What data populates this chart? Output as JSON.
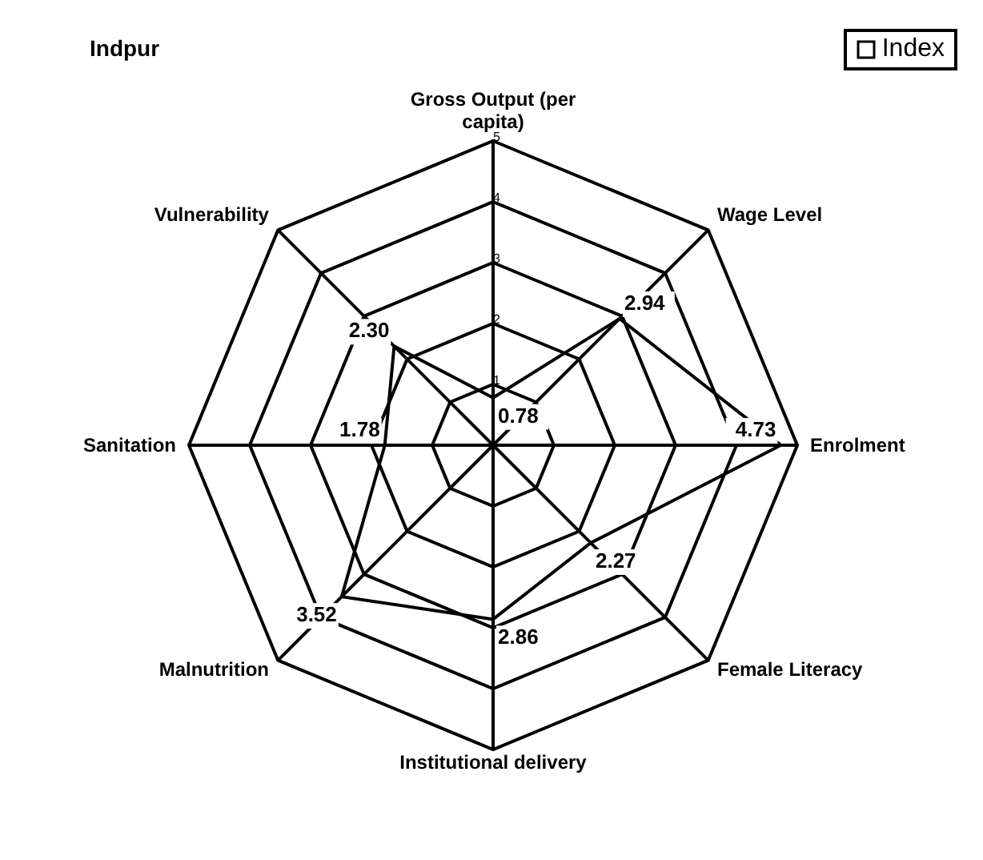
{
  "chart_data": {
    "type": "radar",
    "title": "Indpur",
    "categories": [
      "Gross Output (per capita)",
      "Wage Level",
      "Enrolment",
      "Female Literacy",
      "Institutional delivery",
      "Malnutrition",
      "Sanitation",
      "Vulnerability"
    ],
    "series": [
      {
        "name": "Index",
        "color": "#000000",
        "values": [
          0.78,
          2.94,
          4.73,
          2.27,
          2.86,
          3.52,
          1.78,
          2.3
        ]
      }
    ],
    "ylim": [
      0,
      5
    ],
    "yticks": [
      1,
      2,
      3,
      4,
      5
    ],
    "value_labels": [
      "0.78",
      "2.94",
      "4.73",
      "2.27",
      "2.86",
      "3.52",
      "1.78",
      "2.30"
    ],
    "legend": "top right",
    "grid": true
  }
}
